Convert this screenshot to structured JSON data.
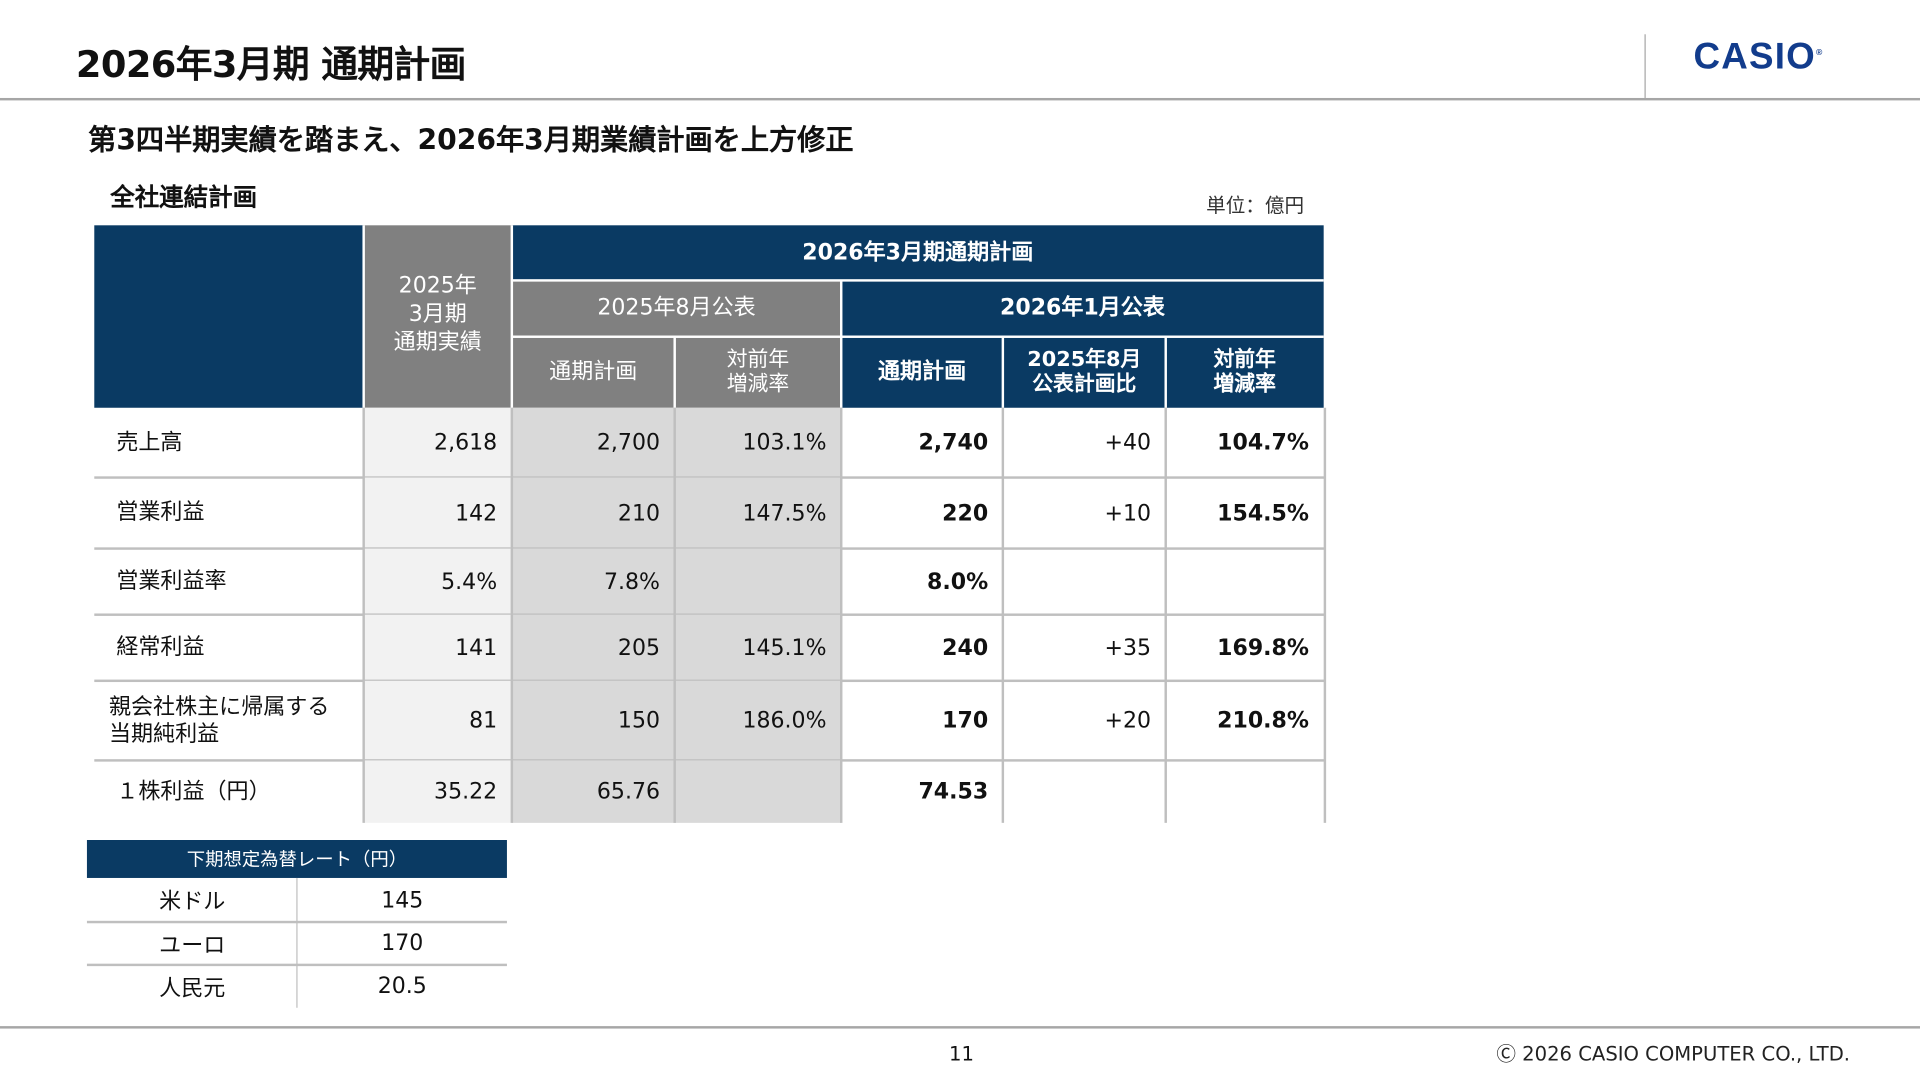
{
  "header": {
    "title": "2026年3月期 通期計画",
    "logo": "CASIO"
  },
  "subtitle": "第3四半期実績を踏まえ、2026年3月期業績計画を上方修正",
  "section_title": "全社連結計画",
  "unit": "単位：億円",
  "table": {
    "col_prev_actual": "2025年\n3月期\n通期実績",
    "group_title": "2026年3月期通期計画",
    "aug_group": "2025年8月公表",
    "jan_group": "2026年1月公表",
    "aug_plan": "通期計画",
    "aug_yoy": "対前年\n増減率",
    "jan_plan": "通期計画",
    "jan_vs_aug": "2025年8月\n公表計画比",
    "jan_yoy": "対前年\n増減率",
    "rows": [
      {
        "label": "売上高",
        "prev": "2,618",
        "aug_plan": "2,700",
        "aug_yoy": "103.1%",
        "jan_plan": "2,740",
        "vs_aug": "+40",
        "jan_yoy": "104.7%"
      },
      {
        "label": "営業利益",
        "prev": "142",
        "aug_plan": "210",
        "aug_yoy": "147.5%",
        "jan_plan": "220",
        "vs_aug": "+10",
        "jan_yoy": "154.5%"
      },
      {
        "label": "営業利益率",
        "prev": "5.4%",
        "aug_plan": "7.8%",
        "aug_yoy": "",
        "jan_plan": "8.0%",
        "vs_aug": "",
        "jan_yoy": ""
      },
      {
        "label": "経常利益",
        "prev": "141",
        "aug_plan": "205",
        "aug_yoy": "145.1%",
        "jan_plan": "240",
        "vs_aug": "+35",
        "jan_yoy": "169.8%"
      },
      {
        "label": "親会社株主に帰属する\n当期純利益",
        "prev": "81",
        "aug_plan": "150",
        "aug_yoy": "186.0%",
        "jan_plan": "170",
        "vs_aug": "+20",
        "jan_yoy": "210.8%"
      },
      {
        "label": "１株利益（円）",
        "prev": "35.22",
        "aug_plan": "65.76",
        "aug_yoy": "",
        "jan_plan": "74.53",
        "vs_aug": "",
        "jan_yoy": ""
      }
    ]
  },
  "fx": {
    "title": "下期想定為替レート（円）",
    "rows": [
      {
        "currency": "米ドル",
        "rate": "145"
      },
      {
        "currency": "ユーロ",
        "rate": "170"
      },
      {
        "currency": "人民元",
        "rate": "20.5"
      }
    ]
  },
  "footer": {
    "page": "11",
    "copyright": "Ⓒ 2026 CASIO COMPUTER CO., LTD."
  },
  "colors": {
    "navy": "#0a3a63",
    "gray_header": "#808080",
    "logo": "#123c8c"
  }
}
